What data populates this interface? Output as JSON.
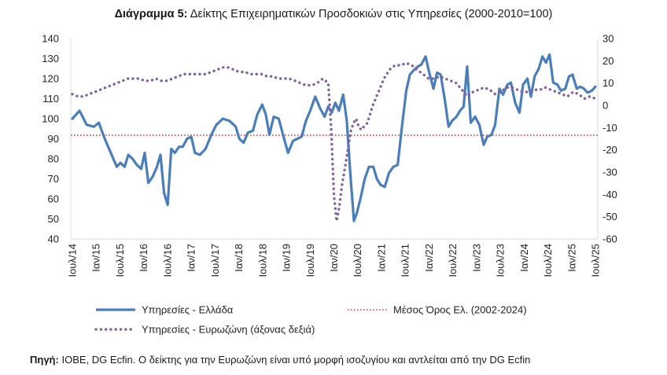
{
  "chart_data": {
    "type": "line",
    "title_lead": "Διάγραμμα 5:",
    "title_rest": "Δείκτης Επιχειρηματικών Προσδοκιών στις Υπηρεσίες (2000-2010=100)",
    "left_axis": {
      "ylim": [
        40,
        140
      ],
      "ticks": [
        140,
        130,
        120,
        110,
        100,
        90,
        80,
        70,
        60,
        50,
        40
      ]
    },
    "right_axis": {
      "ylim": [
        -60,
        30
      ],
      "ticks": [
        30,
        20,
        10,
        0,
        -10,
        -20,
        -30,
        -40,
        -50,
        -60
      ]
    },
    "x_ticks": [
      "Ιουλ/14",
      "Ιαν/15",
      "Ιουλ/15",
      "Ιαν/16",
      "Ιουλ/16",
      "Ιαν/17",
      "Ιουλ/17",
      "Ιαν/18",
      "Ιουλ/18",
      "Ιαν/19",
      "Ιουλ/19",
      "Ιαν/20",
      "Ιουλ/20",
      "Ιαν/21",
      "Ιουλ/21",
      "Ιαν/22",
      "Ιουλ/22",
      "Ιαν/23",
      "Ιουλ/23",
      "Ιαν/24",
      "Ιουλ/24",
      "Ιαν/25",
      "Ιουλ/25"
    ],
    "legend_position": "bottom",
    "grid": false,
    "series": [
      {
        "name": "Υπηρεσίες  - Ελλάδα",
        "axis": "left",
        "style": "solid",
        "color": "#4a7ebb",
        "points": [
          [
            0,
            100
          ],
          [
            1,
            104
          ],
          [
            2,
            97
          ],
          [
            3,
            96
          ],
          [
            3.7,
            98
          ],
          [
            4.3,
            92
          ],
          [
            5,
            86
          ],
          [
            5.6,
            81
          ],
          [
            6.2,
            76
          ],
          [
            6.7,
            78
          ],
          [
            7.3,
            76
          ],
          [
            7.8,
            82
          ],
          [
            8.4,
            80
          ],
          [
            9,
            77
          ],
          [
            9.6,
            75
          ],
          [
            10.1,
            83
          ],
          [
            10.6,
            68
          ],
          [
            11.2,
            71
          ],
          [
            11.8,
            76
          ],
          [
            12.3,
            82
          ],
          [
            12.8,
            63
          ],
          [
            13.3,
            57
          ],
          [
            13.8,
            85
          ],
          [
            14.3,
            83
          ],
          [
            14.9,
            86
          ],
          [
            15.4,
            86
          ],
          [
            16,
            90
          ],
          [
            16.6,
            91
          ],
          [
            17.1,
            83
          ],
          [
            17.8,
            82
          ],
          [
            18.6,
            85
          ],
          [
            19.4,
            92
          ],
          [
            20.1,
            97
          ],
          [
            21,
            100
          ],
          [
            21.9,
            99
          ],
          [
            22.8,
            96
          ],
          [
            23.3,
            90
          ],
          [
            23.9,
            88
          ],
          [
            24.5,
            93
          ],
          [
            25.2,
            94
          ],
          [
            25.8,
            102
          ],
          [
            26.5,
            107
          ],
          [
            27,
            102
          ],
          [
            27.5,
            92
          ],
          [
            28.1,
            101
          ],
          [
            28.8,
            100
          ],
          [
            29.4,
            92
          ],
          [
            30.1,
            83
          ],
          [
            30.8,
            89
          ],
          [
            31.4,
            90
          ],
          [
            32,
            91
          ],
          [
            32.6,
            99
          ],
          [
            33.2,
            104
          ],
          [
            33.9,
            111
          ],
          [
            34.6,
            105
          ],
          [
            35.2,
            101
          ],
          [
            35.7,
            106
          ],
          [
            36.2,
            103
          ],
          [
            36.7,
            108
          ],
          [
            37.2,
            104
          ],
          [
            37.8,
            112
          ],
          [
            38.3,
            99
          ],
          [
            38.8,
            72
          ],
          [
            39.3,
            49
          ],
          [
            39.7,
            53
          ],
          [
            40.2,
            60
          ],
          [
            40.8,
            70
          ],
          [
            41.4,
            76
          ],
          [
            42,
            76
          ],
          [
            42.5,
            70
          ],
          [
            43,
            67
          ],
          [
            43.6,
            66
          ],
          [
            44.2,
            73
          ],
          [
            44.8,
            76
          ],
          [
            45.4,
            77
          ],
          [
            46,
            96
          ],
          [
            46.6,
            114
          ],
          [
            47.1,
            122
          ],
          [
            47.6,
            124
          ],
          [
            48.2,
            126
          ],
          [
            48.7,
            127
          ],
          [
            49.3,
            131
          ],
          [
            49.8,
            123
          ],
          [
            50.4,
            115
          ],
          [
            50.9,
            123
          ],
          [
            51.4,
            122
          ],
          [
            52,
            109
          ],
          [
            52.5,
            96
          ],
          [
            53,
            99
          ],
          [
            53.6,
            101
          ],
          [
            54.1,
            104
          ],
          [
            54.6,
            106
          ],
          [
            55.1,
            126
          ],
          [
            55.6,
            98
          ],
          [
            56.2,
            101
          ],
          [
            56.8,
            97
          ],
          [
            57.4,
            87
          ],
          [
            57.9,
            91
          ],
          [
            58.5,
            92
          ],
          [
            59,
            97
          ],
          [
            59.6,
            115
          ],
          [
            60.1,
            112
          ],
          [
            60.7,
            117
          ],
          [
            61.2,
            118
          ],
          [
            61.8,
            108
          ],
          [
            62.4,
            103
          ],
          [
            62.9,
            117
          ],
          [
            63.5,
            120
          ],
          [
            64,
            111
          ],
          [
            64.5,
            121
          ],
          [
            65.1,
            125
          ],
          [
            65.6,
            131
          ],
          [
            66.1,
            128
          ],
          [
            66.6,
            132
          ],
          [
            67.1,
            118
          ],
          [
            67.7,
            117
          ],
          [
            68.2,
            114
          ],
          [
            68.8,
            115
          ],
          [
            69.3,
            121
          ],
          [
            69.8,
            122
          ],
          [
            70.4,
            115
          ],
          [
            70.9,
            116
          ],
          [
            71.4,
            115
          ],
          [
            71.9,
            113
          ],
          [
            72.5,
            114
          ],
          [
            73,
            116
          ]
        ]
      },
      {
        "name": "Υπηρεσίες - Ευρωζώνη (άξονας δεξιά)",
        "axis": "right",
        "style": "dotted",
        "color": "#7d62a6",
        "points": [
          [
            0,
            5
          ],
          [
            1,
            4
          ],
          [
            2,
            4
          ],
          [
            3,
            5
          ],
          [
            4,
            6
          ],
          [
            5,
            7
          ],
          [
            6,
            8
          ],
          [
            7,
            9
          ],
          [
            8,
            10
          ],
          [
            9,
            11
          ],
          [
            10,
            12
          ],
          [
            11,
            12
          ],
          [
            12,
            12
          ],
          [
            13,
            11
          ],
          [
            14,
            11
          ],
          [
            15,
            12
          ],
          [
            16,
            11
          ],
          [
            17,
            11
          ],
          [
            18,
            12
          ],
          [
            19,
            13
          ],
          [
            20,
            14
          ],
          [
            21,
            14
          ],
          [
            22,
            14
          ],
          [
            23,
            14
          ],
          [
            24,
            14
          ],
          [
            25,
            15
          ],
          [
            26,
            16
          ],
          [
            27,
            17
          ],
          [
            28,
            17
          ],
          [
            29,
            16
          ],
          [
            30,
            15
          ],
          [
            31,
            15
          ],
          [
            32,
            14
          ],
          [
            33,
            14
          ],
          [
            34,
            14
          ],
          [
            35,
            13
          ],
          [
            36,
            13
          ],
          [
            37,
            12
          ],
          [
            38,
            12
          ],
          [
            39,
            12
          ],
          [
            40,
            11
          ],
          [
            41,
            10
          ],
          [
            42,
            9
          ],
          [
            43,
            9
          ],
          [
            44,
            10
          ],
          [
            45,
            12
          ],
          [
            46,
            10
          ],
          [
            46.5,
            -10
          ],
          [
            47,
            -40
          ],
          [
            47.5,
            -52
          ],
          [
            48,
            -45
          ],
          [
            48.5,
            -35
          ],
          [
            49,
            -28
          ],
          [
            49.5,
            -20
          ],
          [
            50,
            -12
          ],
          [
            50.5,
            -8
          ],
          [
            51,
            -6
          ],
          [
            51.5,
            -10
          ],
          [
            52,
            -11
          ],
          [
            52.5,
            -9
          ],
          [
            53,
            -8
          ],
          [
            53.5,
            -4
          ],
          [
            54,
            0
          ],
          [
            55,
            6
          ],
          [
            56,
            12
          ],
          [
            57,
            16
          ],
          [
            58,
            18
          ],
          [
            59,
            18
          ],
          [
            60,
            19
          ],
          [
            61,
            18
          ],
          [
            62,
            16
          ],
          [
            63,
            14
          ],
          [
            64,
            12
          ],
          [
            65,
            12
          ],
          [
            66,
            13
          ],
          [
            67,
            12
          ],
          [
            68,
            11
          ],
          [
            69,
            10
          ],
          [
            70,
            7
          ],
          [
            71,
            4
          ],
          [
            72,
            6
          ],
          [
            73,
            7
          ],
          [
            74,
            8
          ],
          [
            75,
            7
          ],
          [
            76,
            5
          ],
          [
            77,
            6
          ],
          [
            78,
            8
          ],
          [
            79,
            8
          ],
          [
            80,
            7
          ],
          [
            81,
            6
          ],
          [
            82,
            6
          ],
          [
            83,
            7
          ],
          [
            84,
            7
          ],
          [
            85,
            8
          ],
          [
            86,
            7
          ],
          [
            87,
            6
          ],
          [
            88,
            5
          ],
          [
            89,
            4
          ],
          [
            90,
            6
          ],
          [
            91,
            5
          ],
          [
            92,
            3
          ],
          [
            93,
            4
          ],
          [
            94,
            3
          ]
        ]
      },
      {
        "name": "Μέσος Όρος Ελ. (2002-2024)",
        "axis": "left",
        "style": "dotted-line",
        "color": "#d04a4a",
        "value": 91.8
      }
    ],
    "source_label": "Πηγή:",
    "source_text": "ΙΟΒΕ, DG Ecfin. Ο δείκτης για την Ευρωζώνη είναι υπό μορφή ισοζυγίου και αντλείται από την DG Ecfin"
  }
}
